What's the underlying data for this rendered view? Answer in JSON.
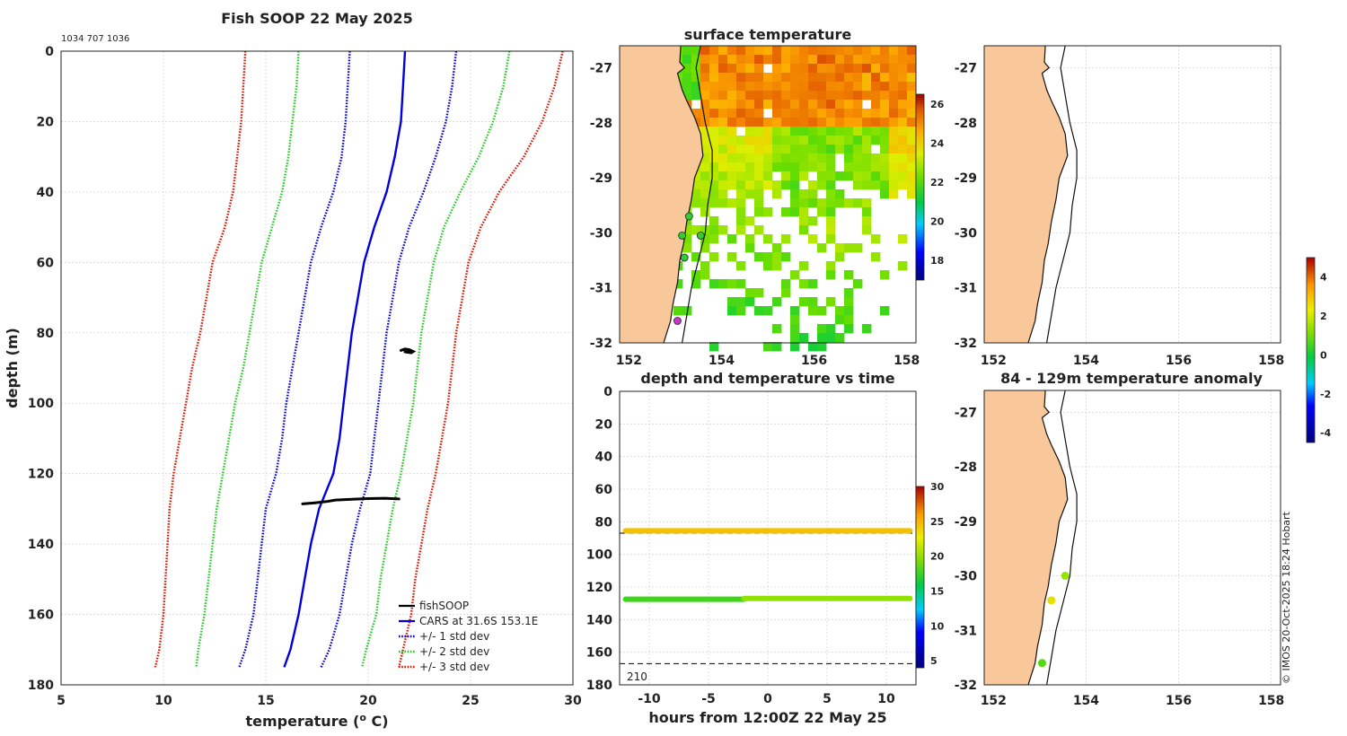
{
  "chart_data": [
    {
      "type": "line",
      "id": "profile",
      "title": "Fish SOOP 22 May 2025",
      "subtitle": "1034 707 1036",
      "xlabel": "temperature (",
      "xlabel_sup": "o",
      "xlabel_end": " C)",
      "ylabel": "depth (m)",
      "xlim": [
        5,
        30
      ],
      "ylim": [
        180,
        0
      ],
      "xticks": [
        5,
        10,
        15,
        20,
        25,
        30
      ],
      "yticks": [
        0,
        20,
        40,
        60,
        80,
        100,
        120,
        140,
        160,
        180
      ],
      "legend": [
        "fishSOOP",
        "CARS at 31.6S 153.1E",
        "+/- 1 std dev",
        "+/- 2 std dev",
        "+/- 3 std dev"
      ],
      "depths": [
        0,
        10,
        20,
        30,
        40,
        50,
        60,
        70,
        80,
        90,
        100,
        110,
        120,
        130,
        140,
        150,
        160,
        170,
        175
      ],
      "series": [
        {
          "name": "CARS mean",
          "color": "#0000dd",
          "style": "solid",
          "values": [
            21.8,
            21.7,
            21.6,
            21.3,
            20.9,
            20.3,
            19.8,
            19.5,
            19.2,
            19.0,
            18.8,
            18.6,
            18.3,
            17.6,
            17.2,
            16.9,
            16.6,
            16.2,
            15.9
          ]
        },
        {
          "name": "mean+1sd",
          "color": "#0000dd",
          "style": "dot",
          "values": [
            24.3,
            24.1,
            23.8,
            23.3,
            22.7,
            22.0,
            21.5,
            21.2,
            20.9,
            20.7,
            20.5,
            20.3,
            20.1,
            19.6,
            19.2,
            18.9,
            18.6,
            18.1,
            17.7
          ]
        },
        {
          "name": "mean-1sd",
          "color": "#0000dd",
          "style": "dot",
          "values": [
            19.1,
            19.0,
            18.9,
            18.7,
            18.3,
            17.7,
            17.2,
            16.9,
            16.6,
            16.3,
            16.0,
            15.8,
            15.5,
            15.0,
            14.8,
            14.6,
            14.4,
            14.0,
            13.7
          ]
        },
        {
          "name": "mean+2sd",
          "color": "#22cc22",
          "style": "dot",
          "values": [
            26.9,
            26.6,
            26.1,
            25.4,
            24.5,
            23.7,
            23.2,
            22.9,
            22.6,
            22.4,
            22.2,
            21.9,
            21.6,
            21.2,
            20.9,
            20.6,
            20.4,
            19.9,
            19.7
          ]
        },
        {
          "name": "mean-2sd",
          "color": "#22cc22",
          "style": "dot",
          "values": [
            16.6,
            16.5,
            16.3,
            16.1,
            15.8,
            15.3,
            14.8,
            14.5,
            14.2,
            13.9,
            13.5,
            13.2,
            12.9,
            12.6,
            12.4,
            12.2,
            12.0,
            11.7,
            11.6
          ]
        },
        {
          "name": "mean+3sd",
          "color": "#dd1100",
          "style": "dot",
          "values": [
            29.5,
            29.1,
            28.5,
            27.6,
            26.4,
            25.5,
            24.9,
            24.6,
            24.3,
            24.1,
            23.9,
            23.6,
            23.3,
            22.9,
            22.6,
            22.3,
            22.1,
            21.7,
            21.5
          ]
        },
        {
          "name": "mean-3sd",
          "color": "#dd1100",
          "style": "dot",
          "values": [
            14.0,
            13.9,
            13.8,
            13.6,
            13.4,
            13.0,
            12.4,
            12.1,
            11.8,
            11.4,
            11.1,
            10.8,
            10.5,
            10.3,
            10.2,
            10.1,
            10.0,
            9.8,
            9.6
          ]
        }
      ],
      "fishsoop": [
        {
          "t": [
            21.6,
            21.8,
            22.0,
            22.2,
            22.1,
            21.8
          ],
          "d": [
            85.0,
            84.6,
            84.8,
            85.3,
            85.7,
            85.4
          ]
        },
        {
          "t": [
            16.8,
            17.4,
            18.0,
            18.4,
            19.2,
            20.0,
            20.8,
            21.5
          ],
          "d": [
            128.6,
            128.3,
            127.9,
            127.5,
            127.3,
            127.1,
            127.0,
            127.2
          ]
        }
      ]
    },
    {
      "type": "heatmap",
      "id": "sst",
      "title": "surface temperature",
      "xlim": [
        151.8,
        158.2
      ],
      "ylim": [
        -32,
        -26.6
      ],
      "xticks": [
        152,
        154,
        156,
        158
      ],
      "yticks": [
        -27,
        -28,
        -29,
        -30,
        -31,
        -32
      ],
      "colorbar_ticks": [
        18,
        20,
        22,
        24,
        26
      ],
      "colorbar_range": [
        17,
        26.5
      ],
      "stations": [
        {
          "lon": 153.05,
          "lat": -31.6,
          "color": "#cc33cc"
        },
        {
          "lon": 153.2,
          "lat": -30.45,
          "color": "#33cc33"
        },
        {
          "lon": 153.3,
          "lat": -29.7,
          "color": "#33cc33"
        },
        {
          "lon": 153.15,
          "lat": -30.05,
          "color": "#33cc33"
        },
        {
          "lon": 153.55,
          "lat": -30.05,
          "color": "#33cc33"
        }
      ]
    },
    {
      "type": "scatter",
      "id": "depth_time",
      "title": "depth and temperature vs time",
      "xlabel": "hours from 12:00Z 22 May 25",
      "xlim": [
        -12.5,
        12.5
      ],
      "ylim": [
        180,
        0
      ],
      "xticks": [
        -10,
        -5,
        0,
        5,
        10
      ],
      "yticks": [
        0,
        20,
        40,
        60,
        80,
        100,
        120,
        140,
        160,
        180
      ],
      "reference_depths": [
        87,
        167
      ],
      "annotation": "210",
      "colorbar_ticks": [
        5,
        10,
        15,
        20,
        25,
        30
      ],
      "colorbar_range": [
        4,
        30
      ],
      "tracks": [
        {
          "x": [
            -12.0,
            12.0
          ],
          "depth": 85.5,
          "temp": 23.8
        },
        {
          "x": [
            -12.0,
            -2.0
          ],
          "depth": 127.5,
          "temp": 17.0
        },
        {
          "x": [
            -2.0,
            12.0
          ],
          "depth": 127.0,
          "temp": 19.5
        }
      ]
    },
    {
      "type": "scatter",
      "id": "map_top",
      "title": "",
      "xlim": [
        151.8,
        158.2
      ],
      "ylim": [
        -32,
        -26.6
      ],
      "xticks": [
        152,
        154,
        156,
        158
      ],
      "yticks": [
        -27,
        -28,
        -29,
        -30,
        -31,
        -32
      ],
      "points": []
    },
    {
      "type": "scatter",
      "id": "anomaly",
      "title": "84 - 129m temperature anomaly",
      "xlim": [
        151.8,
        158.2
      ],
      "ylim": [
        -32,
        -26.6
      ],
      "xticks": [
        152,
        154,
        156,
        158
      ],
      "yticks": [
        -27,
        -28,
        -29,
        -30,
        -31,
        -32
      ],
      "colorbar_ticks": [
        4,
        2,
        0,
        -2,
        -4
      ],
      "colorbar_range": [
        -4.5,
        5
      ],
      "points": [
        {
          "lon": 153.55,
          "lat": -30.0,
          "anom": 1.2
        },
        {
          "lon": 153.25,
          "lat": -30.45,
          "anom": 2.2
        },
        {
          "lon": 153.05,
          "lat": -31.6,
          "anom": 0.5
        }
      ]
    }
  ],
  "watermark": "© IMOS 20-Oct-2025 18:24 Hobart"
}
